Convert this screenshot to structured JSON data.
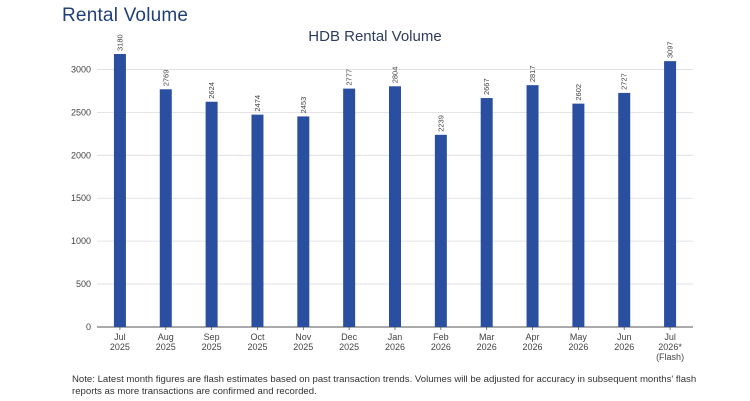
{
  "page": {
    "heading": "Rental Volume",
    "note": "Note: Latest month figures are flash estimates based on past transaction trends. Volumes will be adjusted for accuracy in subsequent months' flash reports as more transactions are confirmed and recorded."
  },
  "chart_data": {
    "type": "bar",
    "title": "HDB Rental Volume",
    "xlabel": "",
    "ylabel": "",
    "categories": [
      [
        "Jul",
        "2025"
      ],
      [
        "Aug",
        "2025"
      ],
      [
        "Sep",
        "2025"
      ],
      [
        "Oct",
        "2025"
      ],
      [
        "Nov",
        "2025"
      ],
      [
        "Dec",
        "2025"
      ],
      [
        "Jan",
        "2026"
      ],
      [
        "Feb",
        "2026"
      ],
      [
        "Mar",
        "2026"
      ],
      [
        "Apr",
        "2026"
      ],
      [
        "May",
        "2026"
      ],
      [
        "Jun",
        "2026"
      ],
      [
        "Jul",
        "2026*",
        "(Flash)"
      ]
    ],
    "values": [
      3180,
      2769,
      2624,
      2474,
      2453,
      2777,
      2804,
      2239,
      2667,
      2817,
      2602,
      2727,
      3097
    ],
    "ylim": [
      0,
      3250
    ],
    "yticks": [
      0,
      500,
      1000,
      1500,
      2000,
      2500,
      3000
    ],
    "grid": true,
    "legend": "none",
    "bar_color": "#2a4fa0"
  }
}
